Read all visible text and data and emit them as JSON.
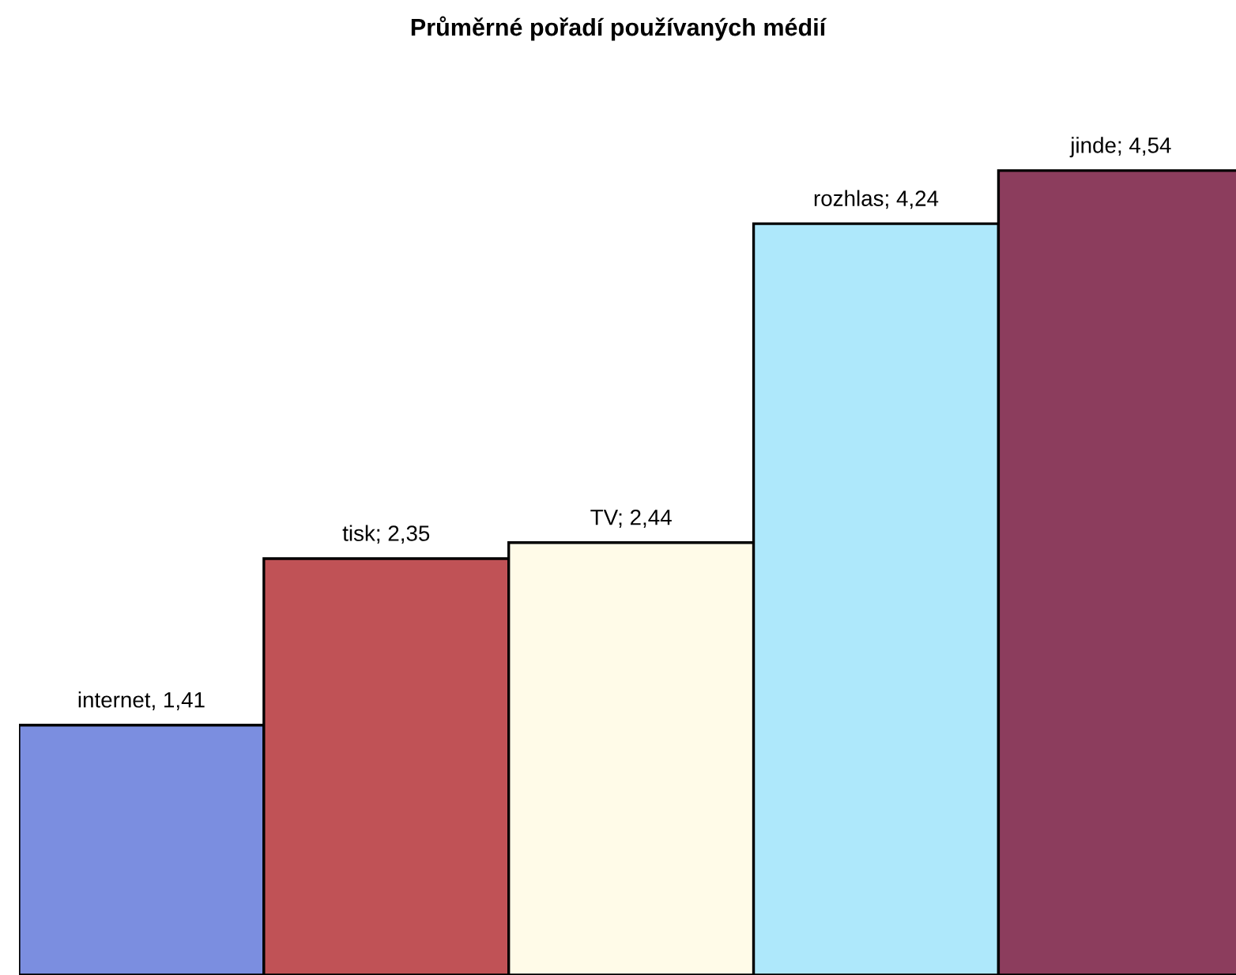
{
  "chart_data": {
    "type": "bar",
    "title": "Průměrné pořadí používaných médií",
    "categories": [
      null,
      null,
      null,
      null,
      null
    ],
    "values": [
      1.41,
      2.35,
      2.44,
      4.24,
      4.54
    ],
    "value_labels": [
      "internet, 1,41",
      "tisk; 2,35",
      "TV; 2,44",
      "rozhlas; 4,24",
      "jinde; 4,54"
    ],
    "colors": [
      "#7b8ee0",
      "#c05256",
      "#fffbe8",
      "#aee8fb",
      "#8c3d5d"
    ],
    "tick_labels": false,
    "grid": false,
    "legend": false
  }
}
